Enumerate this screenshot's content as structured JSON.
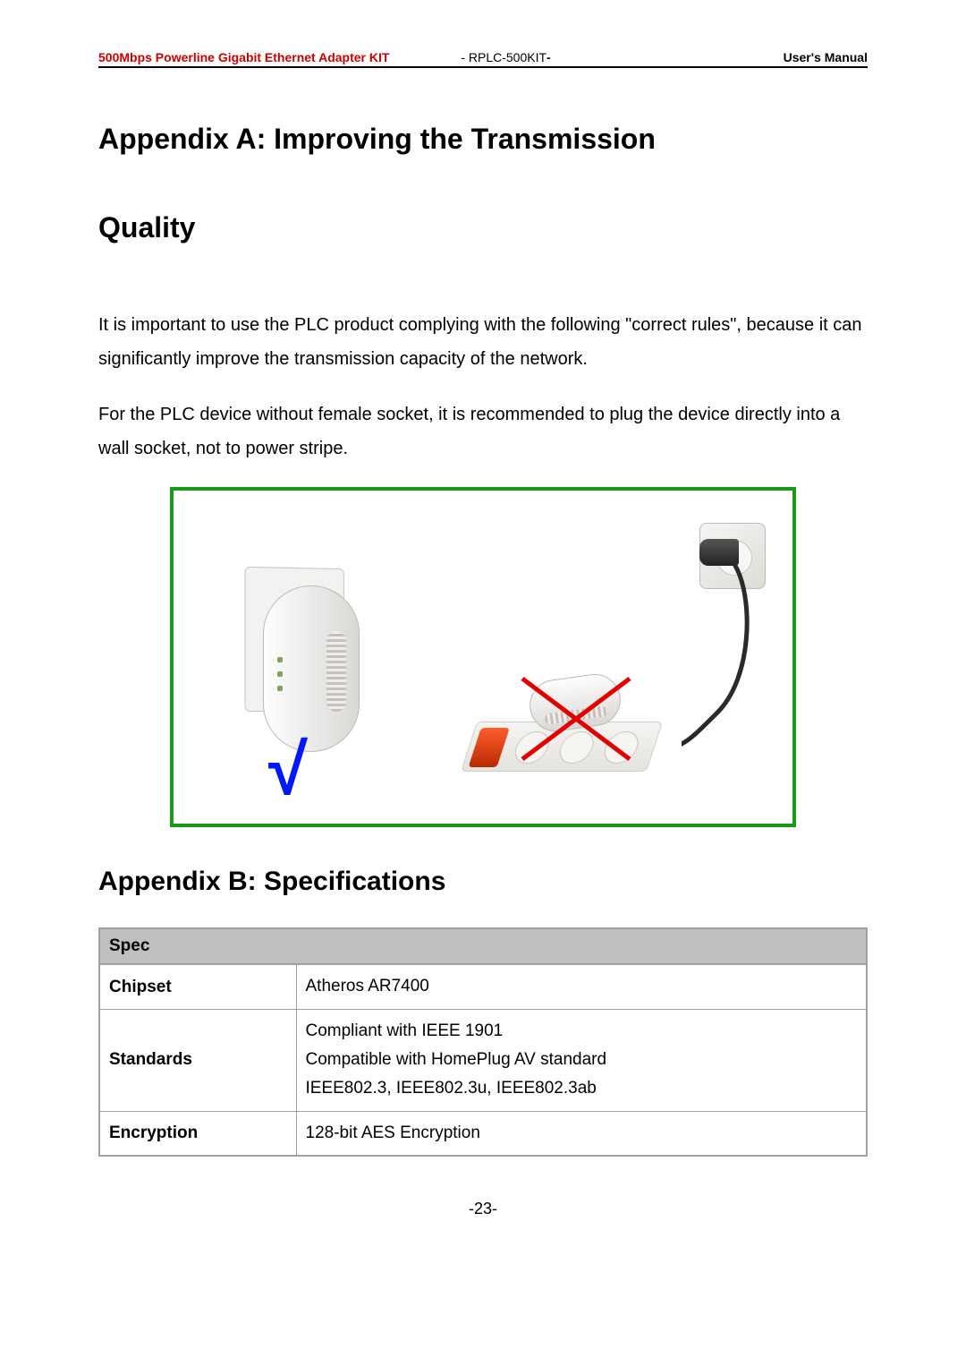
{
  "header": {
    "left": "500Mbps Powerline Gigabit Ethernet Adapter KIT",
    "mid_prefix": "- ",
    "mid_code": "RPLC-500KIT",
    "mid_suffix": "-",
    "right": "User's Manual"
  },
  "appendix_a": {
    "title_line1": "Appendix A: Improving the Transmission",
    "title_line2": "Quality",
    "para1": "It is important to use the PLC product complying with the following \"correct rules\", because it can significantly improve the transmission capacity of the network.",
    "para2": "For the PLC device without female socket, it is recommended to plug the device directly into a wall socket, not to power stripe."
  },
  "figure": {
    "border_color": "#179a17",
    "check_color": "#0017ff",
    "x_color": "#e30000",
    "check_symbol": "√"
  },
  "appendix_b": {
    "title": "Appendix B: Specifications"
  },
  "spec_table": {
    "header": "Spec",
    "rows": [
      {
        "label": "Chipset",
        "value": "Atheros AR7400"
      },
      {
        "label": "Standards",
        "value": "Compliant with IEEE 1901\nCompatible with HomePlug AV standard\nIEEE802.3, IEEE802.3u, IEEE802.3ab"
      },
      {
        "label": "Encryption",
        "value": "128-bit AES Encryption"
      }
    ]
  },
  "footer": {
    "page_number": "-23-"
  }
}
